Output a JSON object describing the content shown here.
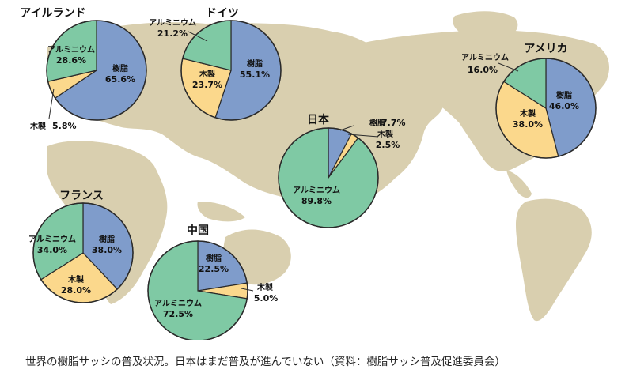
{
  "caption": "世界の樹脂サッシの普及状況。日本はまだ普及が進んでいない（資料：樹脂サッシ普及促進委員会）",
  "colors": {
    "resin": "#7f9ccb",
    "wood": "#fbd88c",
    "aluminium": "#7fc9a4",
    "land": "#d9cfaf",
    "stroke": "#2a2a2a"
  },
  "chart_data": [
    {
      "type": "pie",
      "title": "アイルランド",
      "slices": [
        {
          "name": "樹脂",
          "value": 65.6,
          "value_label": "65.6%",
          "color": "resin"
        },
        {
          "name": "木製",
          "value": 5.8,
          "value_label": "5.8%",
          "color": "wood"
        },
        {
          "name": "アルミニウム",
          "value": 28.6,
          "value_label": "28.6%",
          "color": "aluminium"
        }
      ]
    },
    {
      "type": "pie",
      "title": "ドイツ",
      "slices": [
        {
          "name": "樹脂",
          "value": 55.1,
          "value_label": "55.1%",
          "color": "resin"
        },
        {
          "name": "木製",
          "value": 23.7,
          "value_label": "23.7%",
          "color": "wood"
        },
        {
          "name": "アルミニウム",
          "value": 21.2,
          "value_label": "21.2%",
          "color": "aluminium"
        }
      ]
    },
    {
      "type": "pie",
      "title": "日本",
      "slices": [
        {
          "name": "樹脂",
          "value": 7.7,
          "value_label": "7.7%",
          "color": "resin"
        },
        {
          "name": "木製",
          "value": 2.5,
          "value_label": "2.5%",
          "color": "wood"
        },
        {
          "name": "アルミニウム",
          "value": 89.8,
          "value_label": "89.8%",
          "color": "aluminium"
        }
      ]
    },
    {
      "type": "pie",
      "title": "アメリカ",
      "slices": [
        {
          "name": "樹脂",
          "value": 46.0,
          "value_label": "46.0%",
          "color": "resin"
        },
        {
          "name": "木製",
          "value": 38.0,
          "value_label": "38.0%",
          "color": "wood"
        },
        {
          "name": "アルミニウム",
          "value": 16.0,
          "value_label": "16.0%",
          "color": "aluminium"
        }
      ]
    },
    {
      "type": "pie",
      "title": "フランス",
      "slices": [
        {
          "name": "樹脂",
          "value": 38.0,
          "value_label": "38.0%",
          "color": "resin"
        },
        {
          "name": "木製",
          "value": 28.0,
          "value_label": "28.0%",
          "color": "wood"
        },
        {
          "name": "アルミニウム",
          "value": 34.0,
          "value_label": "34.0%",
          "color": "aluminium"
        }
      ]
    },
    {
      "type": "pie",
      "title": "中国",
      "slices": [
        {
          "name": "樹脂",
          "value": 22.5,
          "value_label": "22.5%",
          "color": "resin"
        },
        {
          "name": "木製",
          "value": 5.0,
          "value_label": "5.0%",
          "color": "wood"
        },
        {
          "name": "アルミニウム",
          "value": 72.5,
          "value_label": "72.5%",
          "color": "aluminium"
        }
      ]
    }
  ]
}
